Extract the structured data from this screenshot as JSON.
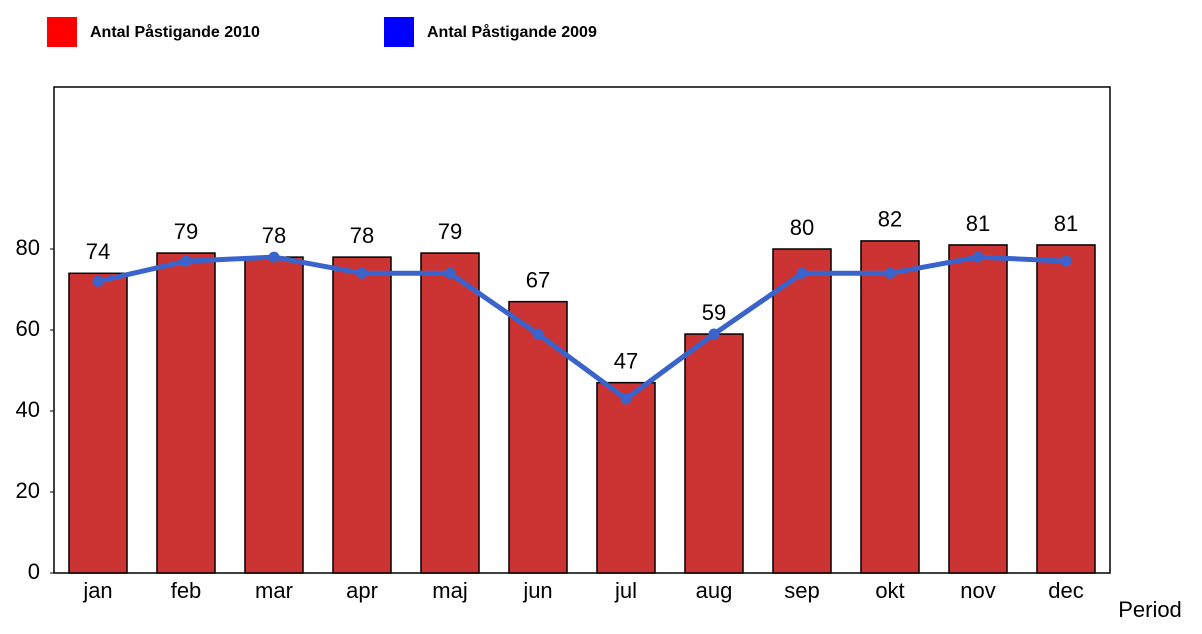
{
  "chart_data": {
    "type": "bar-line",
    "x_label": "Period",
    "categories": [
      "jan",
      "feb",
      "mar",
      "apr",
      "maj",
      "jun",
      "jul",
      "aug",
      "sep",
      "okt",
      "nov",
      "dec"
    ],
    "series": [
      {
        "name": "Antal Påstigande 2010",
        "type": "bar",
        "color": "#cc3333",
        "legend_color": "#ff0000",
        "values": [
          74,
          79,
          78,
          78,
          79,
          67,
          47,
          59,
          80,
          82,
          81,
          81
        ]
      },
      {
        "name": "Antal Påstigande 2009",
        "type": "line",
        "color": "#3a64cc",
        "legend_color": "#0000ff",
        "values": [
          72,
          77,
          78,
          74,
          74,
          59,
          43,
          59,
          74,
          74,
          78,
          77
        ]
      }
    ],
    "ylim": [
      0,
      120
    ],
    "yticks": [
      0,
      20,
      40,
      60,
      80
    ]
  }
}
